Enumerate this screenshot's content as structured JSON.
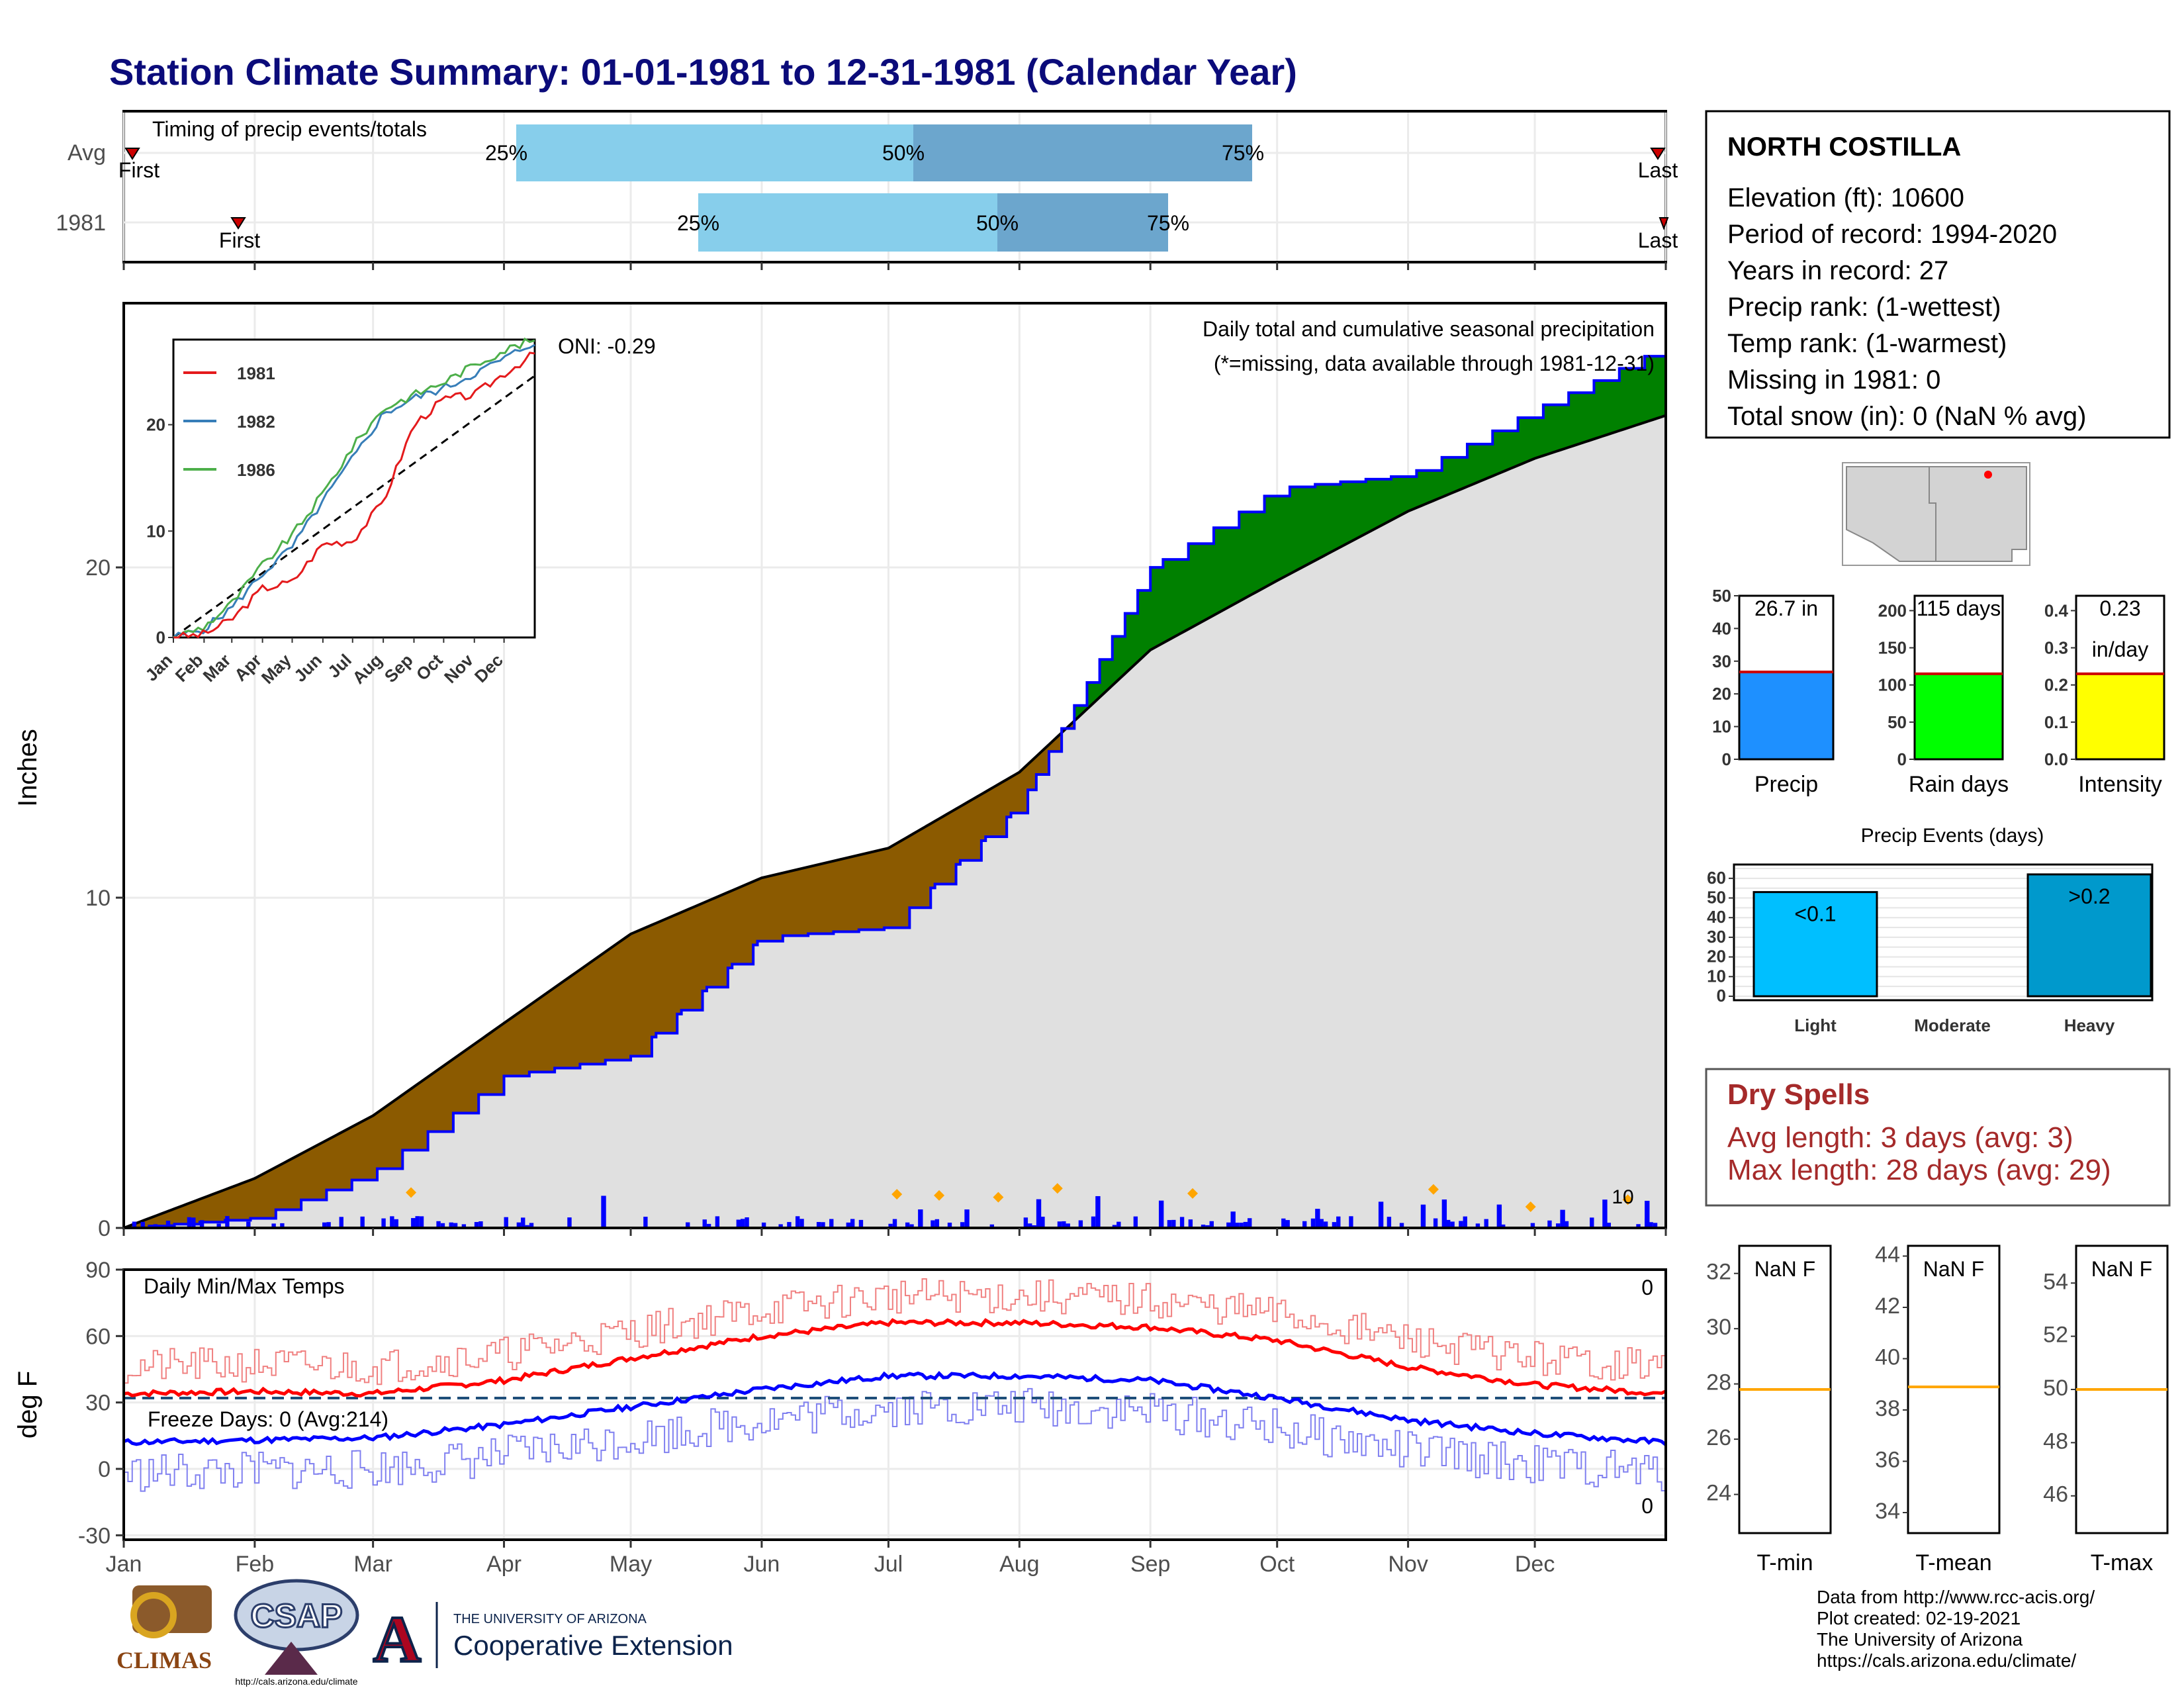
{
  "title": "Station Climate Summary: 01-01-1981 to 12-31-1981 (Calendar Year)",
  "timing": {
    "label": "Timing of precip events/totals",
    "rows": [
      {
        "name": "Avg",
        "first": "First",
        "last": "Last",
        "p25": "25%",
        "p50": "50%",
        "p75": "75%"
      },
      {
        "name": "1981",
        "first": "First",
        "last": "Last",
        "p25": "25%",
        "p50": "50%",
        "p75": "75%"
      }
    ]
  },
  "station": {
    "name": "NORTH COSTILLA",
    "lines": [
      "Elevation (ft): 10600",
      "Period of record: 1994-2020",
      "Years in record: 27",
      "Precip rank:  (1-wettest)",
      "Temp rank:  (1-warmest)",
      "Missing in 1981: 0",
      "Total snow (in): 0 (NaN % avg)"
    ]
  },
  "precip_panel": {
    "ylabel": "Inches",
    "yticks": [
      "0",
      "10",
      "20"
    ],
    "oni": "ONI: -0.29",
    "caption": "Daily total and cumulative seasonal precipitation",
    "missing_note": "(*=missing, data available through 1981-12-31)",
    "max_daily_label": "10"
  },
  "inset": {
    "legend": [
      "1981",
      "1982",
      "1986"
    ],
    "yticks": [
      "0",
      "10",
      "20"
    ],
    "months": [
      "Jan",
      "Feb",
      "Mar",
      "Apr",
      "May",
      "Jun",
      "Jul",
      "Aug",
      "Sep",
      "Oct",
      "Nov",
      "Dec"
    ]
  },
  "temp_panel": {
    "ylabel": "deg F",
    "label": "Daily Min/Max Temps",
    "yticks": [
      "90",
      "60",
      "30",
      "0",
      "-30"
    ],
    "freeze": "Freeze Days: 0 (Avg:214)",
    "max_count": "0",
    "min_count": "0"
  },
  "months": [
    "Jan",
    "Feb",
    "Mar",
    "Apr",
    "May",
    "Jun",
    "Jul",
    "Aug",
    "Sep",
    "Oct",
    "Nov",
    "Dec"
  ],
  "bars": {
    "precip": {
      "label": "Precip",
      "value_text": "26.7 in",
      "yticks": [
        "0",
        "10",
        "20",
        "30",
        "40",
        "50"
      ]
    },
    "raindays": {
      "label": "Rain days",
      "value_text": "115 days",
      "yticks": [
        "0",
        "50",
        "100",
        "150",
        "200"
      ]
    },
    "intensity": {
      "label": "Intensity",
      "value_text": "0.23",
      "value_unit": "in/day",
      "yticks": [
        "0.0",
        "0.1",
        "0.2",
        "0.3",
        "0.4"
      ]
    }
  },
  "events": {
    "title": "Precip Events (days)",
    "cats": [
      "Light",
      "Moderate",
      "Heavy"
    ],
    "bar_labels": [
      "<0.1",
      "",
      ">0.2"
    ],
    "yticks": [
      "0",
      "10",
      "20",
      "30",
      "40",
      "50",
      "60"
    ]
  },
  "dry": {
    "title": "Dry Spells",
    "avg": "Avg length: 3 days (avg: 3)",
    "max": "Max length: 28 days (avg: 29)"
  },
  "temp_boxes": [
    {
      "label": "T-min",
      "value": "NaN F",
      "yticks": [
        "24",
        "26",
        "28",
        "30",
        "32"
      ]
    },
    {
      "label": "T-mean",
      "value": "NaN F",
      "yticks": [
        "34",
        "36",
        "38",
        "40",
        "42",
        "44"
      ]
    },
    {
      "label": "T-max",
      "value": "NaN F",
      "yticks": [
        "46",
        "48",
        "50",
        "52",
        "54"
      ]
    }
  ],
  "footer": [
    "Data from http://www.rcc-acis.org/",
    "Plot created: 02-19-2021",
    "The University of Arizona",
    "https://cals.arizona.edu/climate/"
  ],
  "logos": {
    "climas": "CLIMAS",
    "csap": "CSAP",
    "csap_url": "http://cals.arizona.edu/climate",
    "ua_top": "THE UNIVERSITY OF ARIZONA",
    "ua_bottom": "Cooperative Extension"
  },
  "chart_data": [
    {
      "type": "area",
      "title": "Daily total and cumulative seasonal precipitation",
      "ylabel": "Inches",
      "ylim": [
        0,
        28
      ],
      "x": [
        "Jan",
        "Feb",
        "Mar",
        "Apr",
        "May",
        "Jun",
        "Jul",
        "Aug",
        "Sep",
        "Oct",
        "Nov",
        "Dec",
        "end"
      ],
      "series": [
        {
          "name": "",
          "values": [
            0,
            1.5,
            3.4,
            6.2,
            8.9,
            10.6,
            11.5,
            13.8,
            17.5,
            19.6,
            21.7,
            23.3,
            24.6
          ]
        },
        {
          "name": "",
          "values": [
            0,
            0.3,
            1.7,
            4.6,
            5.2,
            8.8,
            9.1,
            12.8,
            20.0,
            22.4,
            22.8,
            24.8,
            26.7
          ]
        }
      ]
    },
    {
      "type": "line",
      "title": "Daily Min/Max Temps",
      "ylabel": "deg F",
      "ylim": [
        -30,
        90
      ],
      "x": [
        "Jan",
        "Feb",
        "Mar",
        "Apr",
        "May",
        "Jun",
        "Jul",
        "Aug",
        "Sep",
        "Oct",
        "Nov",
        "Dec",
        "end"
      ],
      "series": [
        {
          "name": "",
          "values": [
            34,
            35,
            34,
            40,
            50,
            60,
            66,
            66,
            64,
            58,
            46,
            38,
            34
          ]
        },
        {
          "name": "",
          "values": [
            12,
            13,
            14,
            20,
            28,
            36,
            42,
            42,
            40,
            32,
            22,
            16,
            12
          ]
        }
      ]
    },
    {
      "type": "bar",
      "title": "Precip Events (days)",
      "categories": [
        "Light",
        "Moderate",
        "Heavy"
      ],
      "values": [
        53,
        0,
        62
      ],
      "ylim": [
        0,
        65
      ]
    },
    {
      "type": "bar",
      "categories": [
        "Precip",
        "Rain days",
        "Intensity"
      ],
      "values": [
        26.7,
        115,
        0.23
      ]
    }
  ]
}
